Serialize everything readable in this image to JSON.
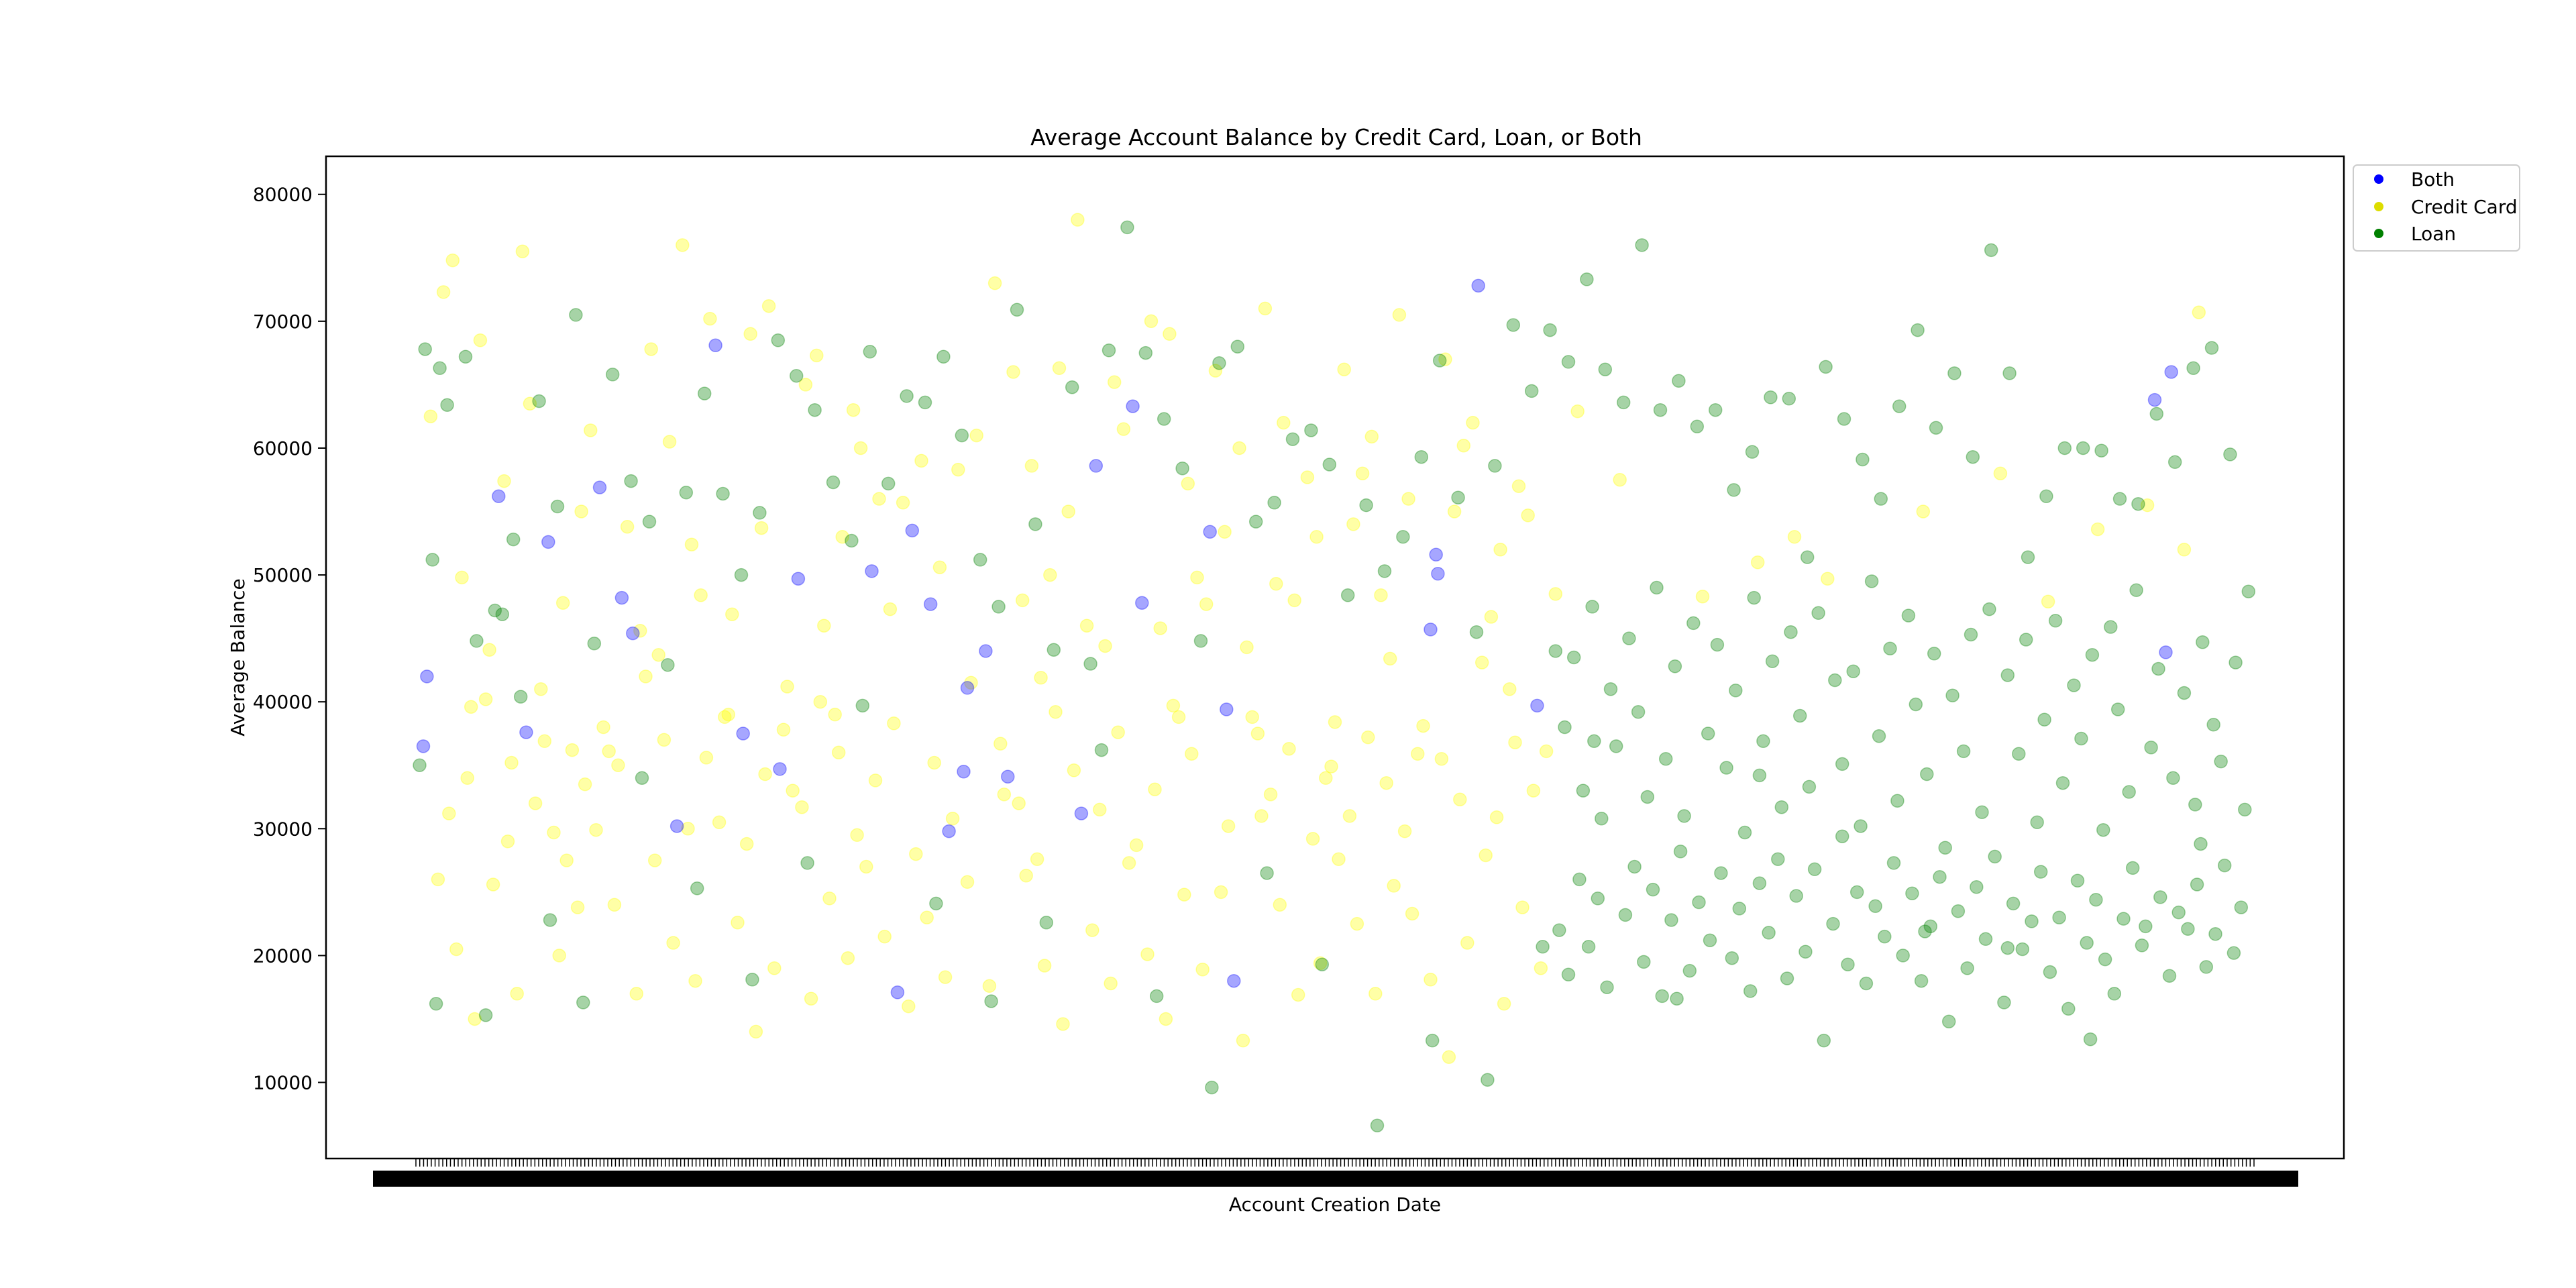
{
  "chart_data": {
    "type": "scatter",
    "title": "Average Account Balance by Credit Card, Loan, or Both",
    "xlabel": "Account Creation Date",
    "ylabel": "Average Balance",
    "ylim": [
      4000,
      83000
    ],
    "yticks": [
      10000,
      20000,
      30000,
      40000,
      50000,
      60000,
      70000,
      80000
    ],
    "x_tick_labels_overlapping": true,
    "grid": false,
    "legend_position": "outside-top-right",
    "point_alpha": 0.35,
    "colors": {
      "Both": "#0000ff",
      "Credit Card": "#ffff00",
      "Loan": "#008000"
    },
    "legend": [
      {
        "name": "Both",
        "color": "#0000ff"
      },
      {
        "name": "Credit Card",
        "color": "#dddd00"
      },
      {
        "name": "Loan",
        "color": "#008000"
      }
    ],
    "series": [
      {
        "name": "Both",
        "color": "#0000ff",
        "x": [
          0.004,
          0.006,
          0.045,
          0.06,
          0.072,
          0.1,
          0.112,
          0.118,
          0.142,
          0.163,
          0.178,
          0.198,
          0.208,
          0.248,
          0.262,
          0.27,
          0.28,
          0.29,
          0.298,
          0.3,
          0.31,
          0.322,
          0.362,
          0.37,
          0.39,
          0.395,
          0.432,
          0.441,
          0.445,
          0.555,
          0.556,
          0.552,
          0.578,
          0.61,
          0.955,
          0.946,
          0.952
        ],
        "y": [
          36500,
          42000,
          56200,
          37600,
          52600,
          56900,
          48200,
          45400,
          30200,
          68100,
          37500,
          34700,
          49700,
          50300,
          17100,
          53500,
          47700,
          29800,
          34500,
          41100,
          44000,
          34100,
          31200,
          58600,
          63300,
          47800,
          53400,
          39400,
          18000,
          51600,
          50100,
          45700,
          72800,
          39700,
          66000,
          63800,
          43900
        ]
      },
      {
        "name": "Credit Card",
        "color": "#ffff00",
        "x": [
          0.008,
          0.015,
          0.02,
          0.025,
          0.03,
          0.035,
          0.04,
          0.048,
          0.052,
          0.058,
          0.062,
          0.068,
          0.075,
          0.08,
          0.085,
          0.09,
          0.095,
          0.105,
          0.11,
          0.115,
          0.122,
          0.128,
          0.132,
          0.138,
          0.145,
          0.15,
          0.155,
          0.16,
          0.168,
          0.172,
          0.182,
          0.188,
          0.192,
          0.202,
          0.212,
          0.218,
          0.222,
          0.228,
          0.232,
          0.238,
          0.242,
          0.252,
          0.258,
          0.265,
          0.275,
          0.285,
          0.295,
          0.305,
          0.315,
          0.325,
          0.33,
          0.335,
          0.34,
          0.345,
          0.35,
          0.355,
          0.36,
          0.365,
          0.375,
          0.38,
          0.385,
          0.4,
          0.405,
          0.41,
          0.415,
          0.42,
          0.425,
          0.43,
          0.435,
          0.44,
          0.448,
          0.452,
          0.458,
          0.462,
          0.468,
          0.472,
          0.478,
          0.485,
          0.49,
          0.495,
          0.5,
          0.505,
          0.51,
          0.515,
          0.52,
          0.525,
          0.53,
          0.535,
          0.54,
          0.545,
          0.56,
          0.565,
          0.57,
          0.575,
          0.58,
          0.585,
          0.59,
          0.595,
          0.6,
          0.605,
          0.615,
          0.62,
          0.632,
          0.655,
          0.7,
          0.73,
          0.75,
          0.768,
          0.82,
          0.862,
          0.888,
          0.915,
          0.942,
          0.962,
          0.97,
          0.012,
          0.022,
          0.032,
          0.042,
          0.055,
          0.065,
          0.078,
          0.088,
          0.098,
          0.108,
          0.12,
          0.13,
          0.14,
          0.152,
          0.165,
          0.175,
          0.185,
          0.195,
          0.205,
          0.215,
          0.225,
          0.235,
          0.245,
          0.255,
          0.268,
          0.278,
          0.288,
          0.3,
          0.312,
          0.32,
          0.332,
          0.342,
          0.352,
          0.368,
          0.378,
          0.388,
          0.398,
          0.408,
          0.418,
          0.428,
          0.438,
          0.45,
          0.46,
          0.47,
          0.48,
          0.492,
          0.502,
          0.512,
          0.522,
          0.532,
          0.542,
          0.552,
          0.562,
          0.572,
          0.582,
          0.592,
          0.602,
          0.612,
          0.018,
          0.028,
          0.038,
          0.05,
          0.07,
          0.082,
          0.092,
          0.102,
          0.125,
          0.135,
          0.148,
          0.158,
          0.17,
          0.18,
          0.19,
          0.2,
          0.21,
          0.22,
          0.23,
          0.24,
          0.25,
          0.26,
          0.272,
          0.282,
          0.292,
          0.302,
          0.318,
          0.328,
          0.338,
          0.348,
          0.358,
          0.372,
          0.382,
          0.392,
          0.402,
          0.412,
          0.422,
          0.442,
          0.455,
          0.465,
          0.475,
          0.488,
          0.498,
          0.508,
          0.518,
          0.528,
          0.538,
          0.548,
          0.558,
          0.568,
          0.588,
          0.598,
          0.608
        ],
        "y": [
          62500,
          72300,
          74800,
          49800,
          39600,
          68500,
          44100,
          57400,
          35200,
          75500,
          63500,
          41000,
          29700,
          47800,
          36200,
          55000,
          61400,
          36100,
          35000,
          53800,
          45600,
          67800,
          43700,
          60500,
          76000,
          52400,
          48400,
          70200,
          38800,
          46900,
          69000,
          53700,
          71200,
          41200,
          65000,
          67300,
          46000,
          39000,
          53000,
          63000,
          60000,
          56000,
          47300,
          55700,
          59000,
          50600,
          58300,
          61000,
          73000,
          66000,
          48000,
          58600,
          41900,
          50000,
          66300,
          55000,
          78000,
          46000,
          44400,
          65200,
          61500,
          70000,
          45800,
          69000,
          38800,
          57200,
          49800,
          47700,
          66100,
          53400,
          60000,
          44300,
          37500,
          71000,
          49300,
          62000,
          48000,
          57700,
          53000,
          34000,
          38400,
          66200,
          54000,
          58000,
          60900,
          48400,
          43400,
          70500,
          56000,
          35900,
          67000,
          55000,
          60200,
          62000,
          43100,
          46700,
          52000,
          41000,
          57000,
          54700,
          36100,
          48500,
          62900,
          57500,
          48300,
          51000,
          53000,
          49700,
          55000,
          58000,
          47900,
          53600,
          55500,
          52000,
          70700,
          26000,
          20500,
          15000,
          25600,
          17000,
          32000,
          20000,
          23800,
          29900,
          24000,
          17000,
          27500,
          21000,
          18000,
          30500,
          22600,
          14000,
          19000,
          33000,
          16600,
          24500,
          19800,
          27000,
          21500,
          16000,
          23000,
          18300,
          25800,
          17600,
          32700,
          26300,
          19200,
          14600,
          22000,
          17800,
          27300,
          20100,
          15000,
          24800,
          18900,
          25000,
          13300,
          31000,
          24000,
          16900,
          19400,
          27600,
          22500,
          17000,
          25500,
          23300,
          18100,
          12000,
          21000,
          27900,
          16200,
          23800,
          19000,
          31200,
          34000,
          40200,
          29000,
          36900,
          27500,
          33500,
          38000,
          42000,
          37000,
          30000,
          35600,
          39000,
          28800,
          34300,
          37800,
          31700,
          40000,
          36000,
          29500,
          33800,
          38300,
          28000,
          35200,
          30800,
          41500,
          36700,
          32000,
          27600,
          39200,
          34600,
          31500,
          37600,
          28700,
          33100,
          39700,
          35900,
          30200,
          38800,
          32700,
          36300,
          29200,
          34900,
          31000,
          37200,
          33600,
          29800,
          38100,
          35500,
          32300,
          30900,
          36800,
          33000
        ]
      },
      {
        "name": "Loan",
        "color": "#008000",
        "x": [
          0.002,
          0.005,
          0.009,
          0.013,
          0.017,
          0.027,
          0.033,
          0.043,
          0.047,
          0.053,
          0.057,
          0.067,
          0.077,
          0.087,
          0.097,
          0.107,
          0.117,
          0.127,
          0.137,
          0.147,
          0.157,
          0.167,
          0.177,
          0.187,
          0.197,
          0.207,
          0.217,
          0.227,
          0.237,
          0.247,
          0.257,
          0.267,
          0.277,
          0.287,
          0.297,
          0.307,
          0.317,
          0.327,
          0.337,
          0.347,
          0.357,
          0.367,
          0.377,
          0.387,
          0.397,
          0.407,
          0.417,
          0.427,
          0.437,
          0.447,
          0.457,
          0.467,
          0.477,
          0.487,
          0.497,
          0.507,
          0.517,
          0.527,
          0.537,
          0.547,
          0.557,
          0.567,
          0.577,
          0.587,
          0.597,
          0.607,
          0.617,
          0.627,
          0.637,
          0.647,
          0.657,
          0.667,
          0.677,
          0.687,
          0.697,
          0.707,
          0.717,
          0.727,
          0.737,
          0.747,
          0.757,
          0.767,
          0.777,
          0.787,
          0.797,
          0.807,
          0.817,
          0.827,
          0.837,
          0.847,
          0.857,
          0.867,
          0.877,
          0.887,
          0.897,
          0.907,
          0.917,
          0.927,
          0.937,
          0.947,
          0.957,
          0.967,
          0.977,
          0.987,
          0.997,
          0.62,
          0.625,
          0.63,
          0.635,
          0.64,
          0.645,
          0.65,
          0.653,
          0.66,
          0.665,
          0.67,
          0.675,
          0.68,
          0.685,
          0.69,
          0.695,
          0.703,
          0.708,
          0.713,
          0.718,
          0.723,
          0.728,
          0.733,
          0.738,
          0.743,
          0.748,
          0.753,
          0.758,
          0.763,
          0.772,
          0.776,
          0.782,
          0.786,
          0.792,
          0.796,
          0.802,
          0.806,
          0.812,
          0.816,
          0.822,
          0.826,
          0.832,
          0.836,
          0.842,
          0.846,
          0.852,
          0.856,
          0.866,
          0.872,
          0.876,
          0.882,
          0.886,
          0.892,
          0.896,
          0.902,
          0.906,
          0.912,
          0.918,
          0.922,
          0.926,
          0.932,
          0.936,
          0.944,
          0.948,
          0.956,
          0.962,
          0.968,
          0.972,
          0.978,
          0.982,
          0.99,
          0.995,
          0.622,
          0.627,
          0.633,
          0.638,
          0.643,
          0.648,
          0.658,
          0.663,
          0.668,
          0.673,
          0.678,
          0.683,
          0.688,
          0.693,
          0.698,
          0.704,
          0.71,
          0.716,
          0.72,
          0.726,
          0.731,
          0.736,
          0.741,
          0.746,
          0.751,
          0.756,
          0.761,
          0.766,
          0.771,
          0.779,
          0.784,
          0.789,
          0.794,
          0.799,
          0.804,
          0.809,
          0.814,
          0.819,
          0.824,
          0.829,
          0.834,
          0.839,
          0.844,
          0.849,
          0.854,
          0.859,
          0.864,
          0.869,
          0.874,
          0.879,
          0.884,
          0.889,
          0.894,
          0.899,
          0.904,
          0.909,
          0.914,
          0.919,
          0.924,
          0.929,
          0.934,
          0.939,
          0.949,
          0.954,
          0.959,
          0.964,
          0.969,
          0.974,
          0.979,
          0.984,
          0.989,
          0.993,
          0.011,
          0.038,
          0.073,
          0.091,
          0.123,
          0.153,
          0.183,
          0.213,
          0.243,
          0.283,
          0.313,
          0.343,
          0.373,
          0.403,
          0.433,
          0.463,
          0.493,
          0.523,
          0.553,
          0.583,
          0.613,
          0.641,
          0.686,
          0.731,
          0.776,
          0.821,
          0.866,
          0.911,
          0.941,
          0.971
        ],
        "y": [
          35000,
          67800,
          51200,
          66300,
          63400,
          67200,
          44800,
          47200,
          46900,
          52800,
          40400,
          63700,
          55400,
          70500,
          44600,
          65800,
          57400,
          54200,
          42900,
          56500,
          64300,
          56400,
          50000,
          54900,
          68500,
          65700,
          63000,
          57300,
          52700,
          67600,
          57200,
          64100,
          63600,
          67200,
          61000,
          51200,
          47500,
          70900,
          54000,
          44100,
          64800,
          43000,
          67700,
          77400,
          67500,
          62300,
          58400,
          44800,
          66700,
          68000,
          54200,
          55700,
          60700,
          61400,
          58700,
          48400,
          55500,
          50300,
          53000,
          59300,
          66900,
          56100,
          45500,
          58600,
          69700,
          64500,
          69300,
          66800,
          73300,
          66200,
          63600,
          76000,
          63000,
          65300,
          61700,
          63000,
          56700,
          59700,
          64000,
          63900,
          51400,
          66400,
          62300,
          59100,
          56000,
          63300,
          69300,
          61600,
          65900,
          59300,
          75600,
          65900,
          51400,
          56200,
          60000,
          60000,
          59800,
          56000,
          55600,
          62700,
          58900,
          66300,
          67900,
          59500,
          48700,
          44000,
          38000,
          43500,
          33000,
          47500,
          30800,
          41000,
          36500,
          45000,
          39200,
          32500,
          49000,
          35500,
          42800,
          31000,
          46200,
          37500,
          44500,
          34800,
          40900,
          29700,
          48200,
          36900,
          43200,
          31700,
          45500,
          38900,
          33300,
          47000,
          41700,
          35100,
          42400,
          30200,
          49500,
          37300,
          44200,
          32200,
          46800,
          39800,
          34300,
          43800,
          28500,
          40500,
          36100,
          45300,
          31300,
          47300,
          42100,
          35900,
          44900,
          30500,
          38600,
          46400,
          33600,
          41300,
          37100,
          43700,
          29900,
          45900,
          39400,
          32900,
          48800,
          36400,
          42600,
          34000,
          40700,
          31900,
          44700,
          38200,
          35300,
          43100,
          31500,
          22000,
          18500,
          26000,
          20700,
          24500,
          17500,
          23200,
          27000,
          19500,
          25200,
          16800,
          22800,
          28200,
          18800,
          24200,
          21200,
          26500,
          19800,
          23700,
          17200,
          25700,
          21800,
          27600,
          18200,
          24700,
          20300,
          26800,
          13300,
          22500,
          19300,
          25000,
          17800,
          23900,
          21500,
          27300,
          20000,
          24900,
          18000,
          22300,
          26200,
          14800,
          23500,
          19000,
          25400,
          21300,
          27800,
          16300,
          24100,
          20500,
          22700,
          26600,
          18700,
          23000,
          15800,
          25900,
          21000,
          24400,
          19700,
          17000,
          22900,
          26900,
          20800,
          24600,
          18400,
          23400,
          22100,
          25600,
          19100,
          21700,
          27100,
          20200,
          23800,
          16200,
          15300,
          22800,
          16300,
          34000,
          25300,
          18100,
          27300,
          39700,
          24100,
          16400,
          22600,
          36200,
          16800,
          9600,
          26500,
          19300,
          6600,
          13300,
          10200,
          20700,
          36900,
          16600,
          34200,
          29400,
          21900,
          20600,
          13400,
          22300,
          28800
        ]
      }
    ]
  }
}
